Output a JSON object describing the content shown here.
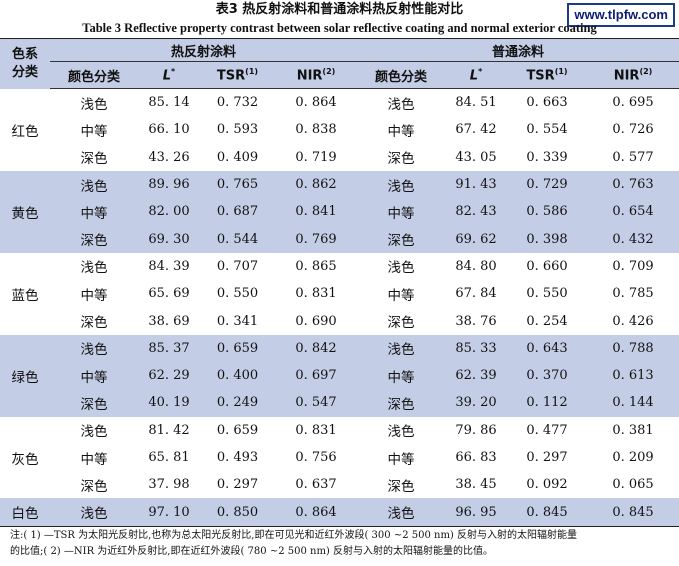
{
  "watermark": "www.tlpfw.com",
  "title_cn": "表3 热反射涂料和普通涂料热反射性能对比",
  "title_en": "Table 3 Reflective property contrast between solar reflective coating and normal exterior coating",
  "header": {
    "corner_line1": "色系",
    "corner_line2": "分类",
    "group1": "热反射涂料",
    "group2": "普通涂料",
    "col_color": "颜色分类",
    "col_L": "L",
    "col_L_sup": "*",
    "col_tsr": "TSR",
    "col_tsr_sup": "(1)",
    "col_nir": "NIR",
    "col_nir_sup": "(2)"
  },
  "rows": [
    {
      "cat": "红色",
      "shade": "浅色",
      "r_L": "85. 14",
      "r_tsr": "0. 732",
      "r_nir": "0. 864",
      "n_shade": "浅色",
      "n_L": "84. 51",
      "n_tsr": "0. 663",
      "n_nir": "0. 695"
    },
    {
      "cat": "",
      "shade": "中等",
      "r_L": "66. 10",
      "r_tsr": "0. 593",
      "r_nir": "0. 838",
      "n_shade": "中等",
      "n_L": "67. 42",
      "n_tsr": "0. 554",
      "n_nir": "0. 726"
    },
    {
      "cat": "",
      "shade": "深色",
      "r_L": "43. 26",
      "r_tsr": "0. 409",
      "r_nir": "0. 719",
      "n_shade": "深色",
      "n_L": "43. 05",
      "n_tsr": "0. 339",
      "n_nir": "0. 577"
    },
    {
      "cat": "黄色",
      "shade": "浅色",
      "r_L": "89. 96",
      "r_tsr": "0. 765",
      "r_nir": "0. 862",
      "n_shade": "浅色",
      "n_L": "91. 43",
      "n_tsr": "0. 729",
      "n_nir": "0. 763"
    },
    {
      "cat": "",
      "shade": "中等",
      "r_L": "82. 00",
      "r_tsr": "0. 687",
      "r_nir": "0. 841",
      "n_shade": "中等",
      "n_L": "82. 43",
      "n_tsr": "0. 586",
      "n_nir": "0. 654"
    },
    {
      "cat": "",
      "shade": "深色",
      "r_L": "69. 30",
      "r_tsr": "0. 544",
      "r_nir": "0. 769",
      "n_shade": "深色",
      "n_L": "69. 62",
      "n_tsr": "0. 398",
      "n_nir": "0. 432"
    },
    {
      "cat": "蓝色",
      "shade": "浅色",
      "r_L": "84. 39",
      "r_tsr": "0. 707",
      "r_nir": "0. 865",
      "n_shade": "浅色",
      "n_L": "84. 80",
      "n_tsr": "0. 660",
      "n_nir": "0. 709"
    },
    {
      "cat": "",
      "shade": "中等",
      "r_L": "65. 69",
      "r_tsr": "0. 550",
      "r_nir": "0. 831",
      "n_shade": "中等",
      "n_L": "67. 84",
      "n_tsr": "0. 550",
      "n_nir": "0. 785"
    },
    {
      "cat": "",
      "shade": "深色",
      "r_L": "38. 69",
      "r_tsr": "0. 341",
      "r_nir": "0. 690",
      "n_shade": "深色",
      "n_L": "38. 76",
      "n_tsr": "0. 254",
      "n_nir": "0. 426"
    },
    {
      "cat": "绿色",
      "shade": "浅色",
      "r_L": "85. 37",
      "r_tsr": "0. 659",
      "r_nir": "0. 842",
      "n_shade": "浅色",
      "n_L": "85. 33",
      "n_tsr": "0. 643",
      "n_nir": "0. 788"
    },
    {
      "cat": "",
      "shade": "中等",
      "r_L": "62. 29",
      "r_tsr": "0. 400",
      "r_nir": "0. 697",
      "n_shade": "中等",
      "n_L": "62. 39",
      "n_tsr": "0. 370",
      "n_nir": "0. 613"
    },
    {
      "cat": "",
      "shade": "深色",
      "r_L": "40. 19",
      "r_tsr": "0. 249",
      "r_nir": "0. 547",
      "n_shade": "深色",
      "n_L": "39. 20",
      "n_tsr": "0. 112",
      "n_nir": "0. 144"
    },
    {
      "cat": "灰色",
      "shade": "浅色",
      "r_L": "81. 42",
      "r_tsr": "0. 659",
      "r_nir": "0. 831",
      "n_shade": "浅色",
      "n_L": "79. 86",
      "n_tsr": "0. 477",
      "n_nir": "0. 381"
    },
    {
      "cat": "",
      "shade": "中等",
      "r_L": "65. 81",
      "r_tsr": "0. 493",
      "r_nir": "0. 756",
      "n_shade": "中等",
      "n_L": "66. 83",
      "n_tsr": "0. 297",
      "n_nir": "0. 209"
    },
    {
      "cat": "",
      "shade": "深色",
      "r_L": "37. 98",
      "r_tsr": "0. 297",
      "r_nir": "0. 637",
      "n_shade": "深色",
      "n_L": "38. 45",
      "n_tsr": "0. 092",
      "n_nir": "0. 065"
    },
    {
      "cat": "白色",
      "shade": "浅色",
      "r_L": "97. 10",
      "r_tsr": "0. 850",
      "r_nir": "0. 864",
      "n_shade": "浅色",
      "n_L": "96. 95",
      "n_tsr": "0. 845",
      "n_nir": "0. 845"
    }
  ],
  "note_line1": "注:( 1) —TSR 为太阳光反射比,也称为总太阳光反射比,即在可见光和近红外波段( 300 ~2 500 nm) 反射与入射的太阳辐射能量",
  "note_line2": "的比值;( 2) —NIR 为近红外反射比,即在近红外波段( 780 ~2 500 nm) 反射与入射的太阳辐射能量的比值。",
  "colors": {
    "band": "#c4cde6",
    "watermark_border": "#1a3a8a"
  }
}
